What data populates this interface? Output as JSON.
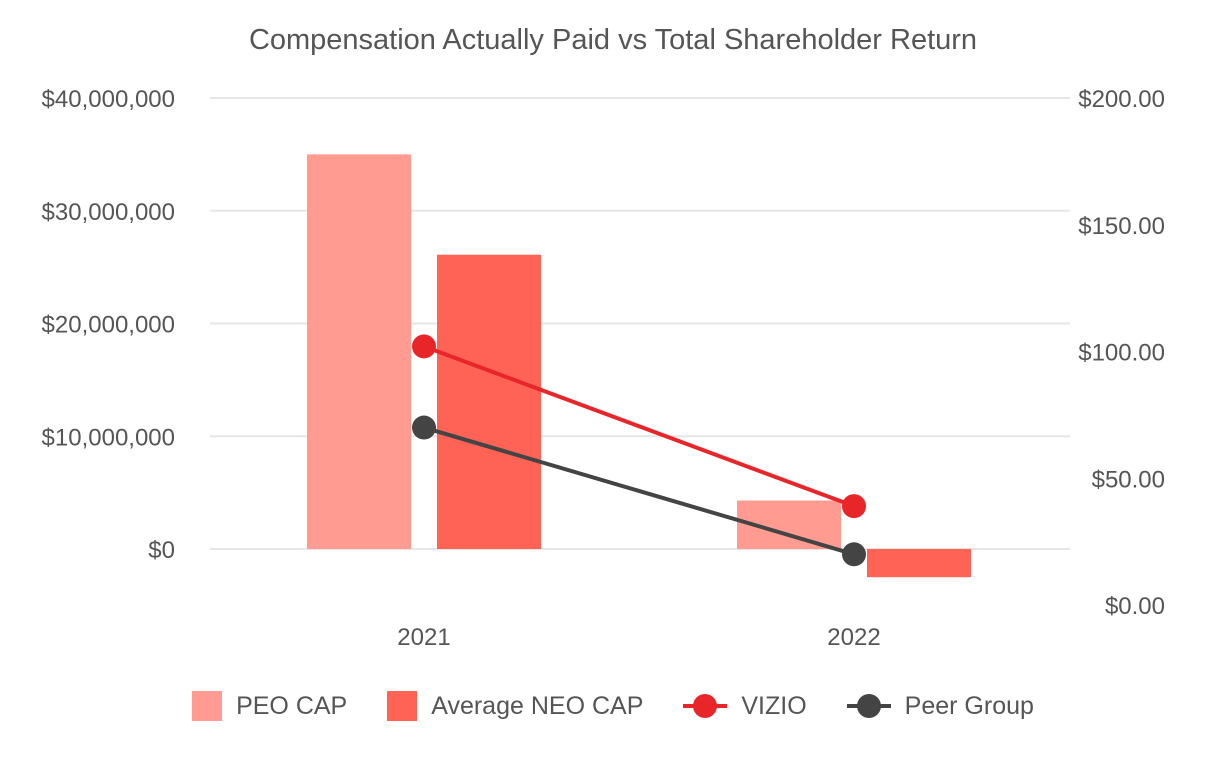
{
  "chart_data": {
    "type": "bar",
    "title": "Compensation Actually Paid vs Total Shareholder Return",
    "categories": [
      "2021",
      "2022"
    ],
    "series": [
      {
        "name": "PEO CAP",
        "kind": "bar",
        "axis": "left",
        "color": "#FF9B91",
        "values": [
          35000000,
          4300000
        ]
      },
      {
        "name": "Average NEO CAP",
        "kind": "bar",
        "axis": "left",
        "color": "#FF6355",
        "values": [
          26100000,
          -2500000
        ]
      },
      {
        "name": "VIZIO",
        "kind": "line",
        "axis": "right",
        "color": "#E8262A",
        "values": [
          102,
          39
        ]
      },
      {
        "name": "Peer Group",
        "kind": "line",
        "axis": "right",
        "color": "#444444",
        "values": [
          70,
          20
        ]
      }
    ],
    "left_axis": {
      "ticks": [
        "$40,000,000",
        "$30,000,000",
        "$20,000,000",
        "$10,000,000",
        "$0"
      ],
      "tick_values": [
        40000000,
        30000000,
        20000000,
        10000000,
        0
      ]
    },
    "right_axis": {
      "ticks": [
        "$200.00",
        "$150.00",
        "$100.00",
        "$50.00",
        "$0.00"
      ],
      "tick_values": [
        200,
        150,
        100,
        50,
        0
      ]
    },
    "grid": true,
    "legend_position": "bottom"
  }
}
